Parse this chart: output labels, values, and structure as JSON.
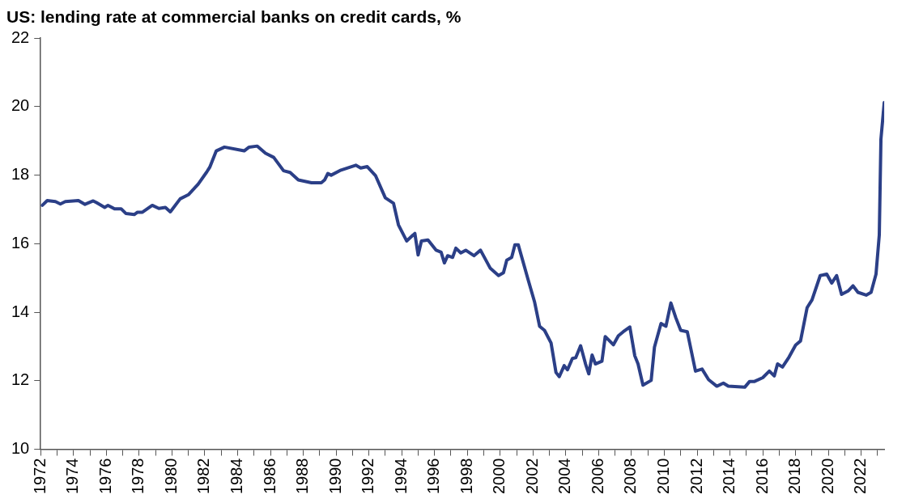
{
  "chart_data": {
    "type": "line",
    "title": "US: lending rate at commercial banks on credit cards, %",
    "xlim": [
      1972,
      2023.4
    ],
    "ylim": [
      10,
      22
    ],
    "yticks": [
      10,
      12,
      14,
      16,
      18,
      20,
      22
    ],
    "xticks": [
      1972,
      {
        "value": 1973,
        "label": null
      },
      1974,
      {
        "value": 1975,
        "label": null
      },
      1976,
      {
        "value": 1977,
        "label": null
      },
      1978,
      {
        "value": 1979,
        "label": null
      },
      1980,
      {
        "value": 1981,
        "label": null
      },
      1982,
      {
        "value": 1983,
        "label": null
      },
      1984,
      {
        "value": 1985,
        "label": null
      },
      1986,
      {
        "value": 1987,
        "label": null
      },
      1988,
      {
        "value": 1989,
        "label": null
      },
      1990,
      {
        "value": 1991,
        "label": null
      },
      1992,
      {
        "value": 1993,
        "label": null
      },
      1994,
      {
        "value": 1995,
        "label": null
      },
      1996,
      {
        "value": 1997,
        "label": null
      },
      1998,
      {
        "value": 1999,
        "label": null
      },
      2000,
      {
        "value": 2001,
        "label": null
      },
      2002,
      {
        "value": 2003,
        "label": null
      },
      2004,
      {
        "value": 2005,
        "label": null
      },
      2006,
      {
        "value": 2007,
        "label": null
      },
      2008,
      {
        "value": 2009,
        "label": null
      },
      2010,
      {
        "value": 2011,
        "label": null
      },
      2012,
      {
        "value": 2013,
        "label": null
      },
      2014,
      {
        "value": 2015,
        "label": null
      },
      2016,
      {
        "value": 2017,
        "label": null
      },
      2018,
      {
        "value": 2019,
        "label": null
      },
      2020,
      {
        "value": 2021,
        "label": null
      },
      2022,
      {
        "value": 2023,
        "label": null
      }
    ],
    "grid": false,
    "legend": false,
    "marker": "none",
    "line_style": "solid",
    "series": [
      {
        "color": "#2b3f87",
        "x": [
          1972.1,
          1972.4,
          1972.9,
          1973.2,
          1973.5,
          1974.3,
          1974.7,
          1975.2,
          1975.4,
          1975.9,
          1976.1,
          1976.5,
          1976.9,
          1977.2,
          1977.7,
          1977.9,
          1978.2,
          1978.8,
          1979.2,
          1979.6,
          1979.9,
          1980.5,
          1981.0,
          1981.6,
          1982.1,
          1982.3,
          1982.7,
          1983.2,
          1984.4,
          1984.7,
          1985.2,
          1985.7,
          1986.2,
          1986.8,
          1987.2,
          1987.7,
          1988.5,
          1989.1,
          1989.3,
          1989.5,
          1989.7,
          1990.3,
          1991.2,
          1991.5,
          1991.9,
          1992.4,
          1993.0,
          1993.5,
          1993.8,
          1994.3,
          1994.8,
          1995.0,
          1995.2,
          1995.6,
          1996.1,
          1996.4,
          1996.6,
          1996.8,
          1997.1,
          1997.3,
          1997.6,
          1997.9,
          1998.4,
          1998.8,
          1999.4,
          1999.9,
          2000.2,
          2000.4,
          2000.7,
          2000.9,
          2001.1,
          2001.7,
          2002.1,
          2002.4,
          2002.7,
          2003.1,
          2003.4,
          2003.6,
          2003.9,
          2004.1,
          2004.4,
          2004.6,
          2004.9,
          2005.2,
          2005.4,
          2005.6,
          2005.8,
          2006.2,
          2006.4,
          2006.9,
          2007.2,
          2007.5,
          2007.9,
          2008.2,
          2008.4,
          2008.7,
          2009.2,
          2009.4,
          2009.8,
          2010.1,
          2010.4,
          2010.7,
          2011.0,
          2011.4,
          2011.9,
          2012.3,
          2012.7,
          2013.2,
          2013.6,
          2013.9,
          2014.9,
          2015.2,
          2015.5,
          2016.0,
          2016.4,
          2016.7,
          2016.9,
          2017.2,
          2017.6,
          2018.0,
          2018.3,
          2018.7,
          2019.0,
          2019.5,
          2019.9,
          2020.2,
          2020.5,
          2020.8,
          2021.2,
          2021.5,
          2021.8,
          2022.3,
          2022.6,
          2022.9,
          2023.1,
          2023.2,
          2023.4
        ],
        "values": [
          17.12,
          17.26,
          17.23,
          17.16,
          17.23,
          17.26,
          17.15,
          17.25,
          17.2,
          17.06,
          17.12,
          17.02,
          17.02,
          16.88,
          16.85,
          16.92,
          16.92,
          17.12,
          17.03,
          17.06,
          16.93,
          17.31,
          17.43,
          17.74,
          18.08,
          18.23,
          18.71,
          18.82,
          18.71,
          18.82,
          18.85,
          18.64,
          18.52,
          18.13,
          18.08,
          17.86,
          17.78,
          17.78,
          17.86,
          18.05,
          18.0,
          18.15,
          18.29,
          18.21,
          18.25,
          17.99,
          17.34,
          17.18,
          16.55,
          16.08,
          16.3,
          15.67,
          16.08,
          16.11,
          15.81,
          15.75,
          15.44,
          15.65,
          15.6,
          15.87,
          15.73,
          15.81,
          15.65,
          15.81,
          15.28,
          15.07,
          15.15,
          15.52,
          15.6,
          15.97,
          15.97,
          14.95,
          14.29,
          13.59,
          13.47,
          13.1,
          12.24,
          12.12,
          12.44,
          12.32,
          12.65,
          12.67,
          13.02,
          12.49,
          12.2,
          12.75,
          12.49,
          12.57,
          13.29,
          13.05,
          13.31,
          13.43,
          13.57,
          12.73,
          12.49,
          11.87,
          12.01,
          12.98,
          13.67,
          13.59,
          14.27,
          13.84,
          13.47,
          13.43,
          12.28,
          12.34,
          12.03,
          11.84,
          11.93,
          11.84,
          11.81,
          11.98,
          11.98,
          12.09,
          12.28,
          12.14,
          12.49,
          12.4,
          12.69,
          13.04,
          13.16,
          14.13,
          14.36,
          15.07,
          15.11,
          14.85,
          15.07,
          14.52,
          14.62,
          14.77,
          14.58,
          14.5,
          14.58,
          15.11,
          16.26,
          19.05,
          20.12
        ]
      }
    ]
  }
}
